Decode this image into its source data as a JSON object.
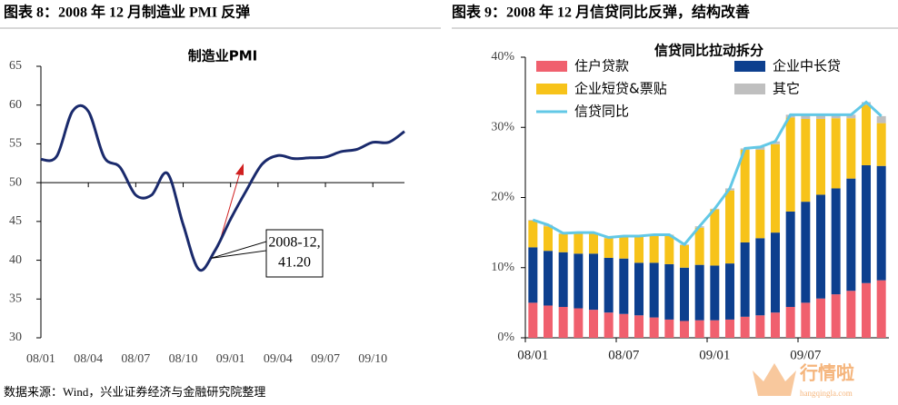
{
  "chart_data": [
    {
      "type": "line",
      "header": "图表 8：2008 年 12 月制造业 PMI 反弹",
      "title": "制造业PMI",
      "categories": [
        "08/01",
        null,
        null,
        "08/04",
        null,
        null,
        "08/07",
        null,
        null,
        "08/10",
        null,
        null,
        "09/01",
        null,
        null,
        "09/04",
        null,
        null,
        "09/07",
        null,
        null,
        "09/10",
        null,
        null
      ],
      "series": [
        {
          "name": "制造业PMI",
          "color": "#1a2a6c",
          "values": [
            53.0,
            53.4,
            59.2,
            59.2,
            53.3,
            52.0,
            48.4,
            48.4,
            51.2,
            44.6,
            38.8,
            41.2,
            45.3,
            49.0,
            52.4,
            53.5,
            53.1,
            53.2,
            53.3,
            54.0,
            54.3,
            55.2,
            55.2,
            56.6
          ]
        }
      ],
      "ylim": [
        30,
        65
      ],
      "yticks": [
        30,
        35,
        40,
        45,
        50,
        55,
        60,
        65
      ],
      "xaxis_at": 50,
      "annotation": {
        "lines": [
          "2008-12,",
          "41.20"
        ],
        "point": 11
      }
    },
    {
      "type": "bar",
      "header": "图表 9：2008 年 12 月信贷同比反弹，结构改善",
      "title": "信贷同比拉动拆分",
      "categories": [
        "08/01",
        null,
        null,
        null,
        null,
        null,
        "08/07",
        null,
        null,
        null,
        null,
        null,
        "09/01",
        null,
        null,
        null,
        null,
        null,
        "09/07",
        null,
        null,
        null,
        null,
        null
      ],
      "series": [
        {
          "name": "住户贷款",
          "color": "#f0606e",
          "values": [
            5.0,
            4.6,
            4.4,
            4.2,
            4.0,
            3.6,
            3.4,
            3.2,
            2.9,
            2.6,
            2.4,
            2.5,
            2.5,
            2.6,
            3.0,
            3.2,
            3.6,
            4.4,
            5.0,
            5.6,
            6.2,
            6.7,
            7.8,
            8.2
          ]
        },
        {
          "name": "企业中长贷",
          "color": "#0d3f8e",
          "values": [
            7.9,
            7.8,
            7.8,
            7.8,
            8.0,
            7.8,
            7.9,
            7.5,
            7.8,
            7.9,
            7.6,
            7.9,
            7.8,
            8.0,
            10.6,
            11.0,
            11.4,
            13.6,
            14.4,
            14.8,
            15.1,
            16.0,
            16.8,
            16.3
          ]
        },
        {
          "name": "企业短贷&票贴",
          "color": "#f7c31a",
          "values": [
            3.8,
            3.5,
            2.6,
            2.9,
            2.9,
            2.8,
            3.1,
            3.7,
            3.9,
            4.1,
            3.2,
            5.3,
            8.0,
            10.4,
            13.2,
            12.6,
            12.6,
            13.4,
            11.8,
            10.8,
            10.0,
            8.6,
            8.6,
            6.1
          ]
        },
        {
          "name": "其它",
          "color": "#bfbfbf",
          "values": [
            0.1,
            0.2,
            0.1,
            0.1,
            0.1,
            0.1,
            0.1,
            0.1,
            0.1,
            0.1,
            0.1,
            0.2,
            0.1,
            0.3,
            0.2,
            0.4,
            0.4,
            0.4,
            0.6,
            0.6,
            0.5,
            0.5,
            0.4,
            1.0
          ]
        },
        {
          "name": "信贷同比",
          "type": "line",
          "color": "#62c8e6",
          "values": [
            16.8,
            16.1,
            14.9,
            15.0,
            15.0,
            14.3,
            14.5,
            14.5,
            14.7,
            14.7,
            13.3,
            15.9,
            18.4,
            21.3,
            27.0,
            27.2,
            28.0,
            31.8,
            31.8,
            31.8,
            31.8,
            31.8,
            33.6,
            31.6
          ]
        }
      ],
      "ylim": [
        0,
        40
      ],
      "yticks": [
        {
          "value": 0,
          "label": "0%"
        },
        {
          "value": 10,
          "label": "10%"
        },
        {
          "value": 20,
          "label": "20%"
        },
        {
          "value": 30,
          "label": "30%"
        },
        {
          "value": 40,
          "label": "40%"
        }
      ]
    }
  ],
  "footer": "数据来源：Wind，兴业证券经济与金融研究院整理",
  "watermark": {
    "name": "行情啦",
    "url": "hangqingla.com"
  }
}
